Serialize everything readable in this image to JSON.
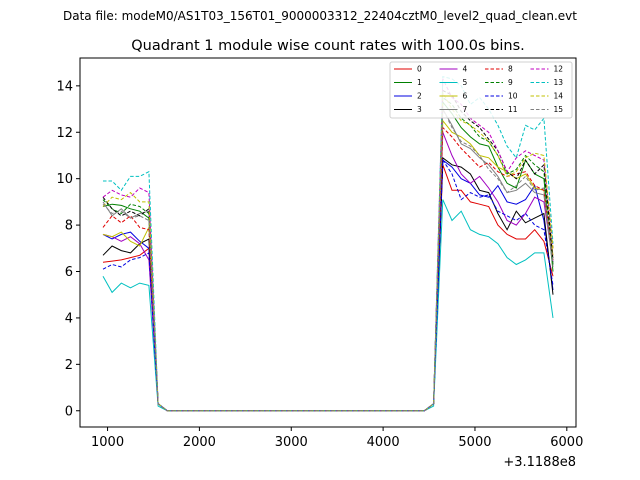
{
  "suptitle": "Data file: modeM0/AS1T03_156T01_9000003312_22404cztM0_level2_quad_clean.evt",
  "chart_data": {
    "type": "line",
    "title": "Quadrant 1 module wise count rates with 100.0s bins.",
    "xlabel": "",
    "ylabel": "",
    "x_offset_label": "+3.1188e8",
    "xlim": [
      700,
      6100
    ],
    "ylim": [
      -0.7,
      15.2
    ],
    "xticks": [
      1000,
      2000,
      3000,
      4000,
      5000,
      6000
    ],
    "yticks": [
      0,
      2,
      4,
      6,
      8,
      10,
      12,
      14
    ],
    "grid": false,
    "legend_position": "top-right",
    "x": [
      950,
      1050,
      1150,
      1250,
      1350,
      1450,
      1550,
      1650,
      4450,
      4550,
      4650,
      4750,
      4850,
      4950,
      5050,
      5150,
      5250,
      5350,
      5450,
      5550,
      5650,
      5750,
      5850
    ],
    "series": [
      {
        "name": "0",
        "color": "#e00000",
        "dash": "solid",
        "values": [
          6.4,
          6.45,
          6.5,
          6.6,
          6.7,
          7.0,
          0.3,
          0.0,
          0.0,
          0.3,
          10.6,
          9.5,
          9.5,
          9.0,
          8.9,
          8.8,
          8.0,
          7.6,
          7.4,
          7.4,
          7.8,
          7.3,
          5.8
        ]
      },
      {
        "name": "1",
        "color": "#008000",
        "dash": "solid",
        "values": [
          8.8,
          8.9,
          8.85,
          8.7,
          8.6,
          8.3,
          0.3,
          0.0,
          0.0,
          0.3,
          13.3,
          12.8,
          12.2,
          11.8,
          11.5,
          11.4,
          10.5,
          9.8,
          9.6,
          10.8,
          10.2,
          10.0,
          6.0
        ]
      },
      {
        "name": "2",
        "color": "#0000e0",
        "dash": "solid",
        "values": [
          7.6,
          7.4,
          7.6,
          7.7,
          7.3,
          7.0,
          0.3,
          0.0,
          0.0,
          0.3,
          10.8,
          10.5,
          10.0,
          9.8,
          9.3,
          9.2,
          9.7,
          9.0,
          8.9,
          9.1,
          9.7,
          8.2,
          5.2
        ]
      },
      {
        "name": "3",
        "color": "#000000",
        "dash": "solid",
        "values": [
          6.7,
          7.1,
          6.9,
          6.8,
          7.2,
          7.4,
          0.3,
          0.0,
          0.0,
          0.3,
          10.9,
          10.6,
          10.5,
          10.2,
          9.5,
          9.4,
          8.5,
          7.8,
          8.6,
          8.1,
          8.3,
          8.5,
          5.0
        ]
      },
      {
        "name": "4",
        "color": "#a000c0",
        "dash": "solid",
        "values": [
          7.6,
          7.5,
          7.3,
          7.5,
          7.2,
          6.5,
          0.3,
          0.0,
          0.0,
          0.3,
          12.0,
          11.0,
          10.2,
          9.8,
          10.1,
          9.6,
          9.0,
          8.2,
          8.0,
          8.5,
          9.2,
          9.0,
          6.4
        ]
      },
      {
        "name": "5",
        "color": "#00c0c0",
        "dash": "solid",
        "values": [
          5.8,
          5.1,
          5.5,
          5.3,
          5.5,
          5.4,
          0.2,
          0.0,
          0.0,
          0.2,
          9.1,
          8.2,
          8.6,
          7.8,
          7.6,
          7.5,
          7.2,
          6.6,
          6.3,
          6.5,
          6.8,
          6.8,
          4.0
        ]
      },
      {
        "name": "6",
        "color": "#c0c000",
        "dash": "solid",
        "values": [
          7.6,
          7.5,
          7.7,
          7.3,
          7.1,
          7.9,
          0.3,
          0.0,
          0.0,
          0.3,
          12.5,
          12.0,
          11.8,
          11.5,
          11.0,
          10.9,
          10.5,
          10.3,
          10.0,
          10.2,
          9.6,
          9.5,
          6.7
        ]
      },
      {
        "name": "7",
        "color": "#808080",
        "dash": "solid",
        "values": [
          9.0,
          8.4,
          8.7,
          8.3,
          8.5,
          8.6,
          0.3,
          0.0,
          0.0,
          0.3,
          13.0,
          12.3,
          11.5,
          11.3,
          10.9,
          10.6,
          10.1,
          9.4,
          9.5,
          9.8,
          9.4,
          9.3,
          6.2
        ]
      },
      {
        "name": "8",
        "color": "#e00000",
        "dash": "dashed",
        "values": [
          7.9,
          8.4,
          8.1,
          8.4,
          7.9,
          7.8,
          0.3,
          0.0,
          0.0,
          0.3,
          12.2,
          11.8,
          11.3,
          10.9,
          10.5,
          10.7,
          10.3,
          10.1,
          10.2,
          10.3,
          9.7,
          9.5,
          6.5
        ]
      },
      {
        "name": "9",
        "color": "#008000",
        "dash": "dashed",
        "values": [
          9.1,
          8.7,
          8.5,
          8.9,
          8.8,
          8.5,
          0.3,
          0.0,
          0.0,
          0.3,
          13.5,
          13.2,
          12.6,
          12.3,
          11.8,
          11.6,
          11.0,
          10.2,
          10.4,
          11.0,
          10.6,
          10.3,
          6.3
        ]
      },
      {
        "name": "10",
        "color": "#0000e0",
        "dash": "dashed",
        "values": [
          6.1,
          6.3,
          6.2,
          6.5,
          6.6,
          6.8,
          0.3,
          0.0,
          0.0,
          0.3,
          10.8,
          10.2,
          9.1,
          9.4,
          9.2,
          9.3,
          8.6,
          8.4,
          8.2,
          8.5,
          8.0,
          7.8,
          5.4
        ]
      },
      {
        "name": "11",
        "color": "#000000",
        "dash": "dashed",
        "values": [
          9.2,
          8.7,
          8.4,
          8.6,
          8.4,
          8.7,
          0.3,
          0.0,
          0.0,
          0.3,
          13.8,
          13.6,
          12.9,
          12.5,
          12.2,
          11.7,
          11.2,
          10.3,
          10.0,
          10.8,
          10.2,
          10.6,
          6.5
        ]
      },
      {
        "name": "12",
        "color": "#c000c0",
        "dash": "dashed",
        "values": [
          9.2,
          9.5,
          9.3,
          9.2,
          9.6,
          9.4,
          0.3,
          0.0,
          0.0,
          0.3,
          14.3,
          13.5,
          13.2,
          12.6,
          12.3,
          12.0,
          11.2,
          10.3,
          10.9,
          11.2,
          11.0,
          10.8,
          7.0
        ]
      },
      {
        "name": "13",
        "color": "#00c0c0",
        "dash": "dashed",
        "values": [
          9.9,
          9.9,
          9.5,
          10.1,
          10.1,
          10.3,
          0.3,
          0.0,
          0.0,
          0.3,
          14.4,
          14.3,
          14.0,
          13.2,
          13.5,
          13.0,
          12.3,
          11.4,
          10.9,
          12.3,
          12.1,
          12.6,
          7.2
        ]
      },
      {
        "name": "14",
        "color": "#c0c000",
        "dash": "dashed",
        "values": [
          8.8,
          9.2,
          9.1,
          9.4,
          9.0,
          9.0,
          0.3,
          0.0,
          0.0,
          0.3,
          13.7,
          13.0,
          12.5,
          12.3,
          12.0,
          11.6,
          11.0,
          10.1,
          10.3,
          10.9,
          11.1,
          11.0,
          7.0
        ]
      },
      {
        "name": "15",
        "color": "#808080",
        "dash": "dashed",
        "values": [
          8.9,
          8.5,
          8.6,
          8.3,
          8.4,
          8.2,
          0.3,
          0.0,
          0.0,
          0.3,
          13.0,
          12.2,
          11.6,
          11.4,
          11.0,
          10.4,
          10.0,
          9.4,
          9.7,
          10.1,
          9.5,
          9.6,
          6.4
        ]
      }
    ]
  }
}
